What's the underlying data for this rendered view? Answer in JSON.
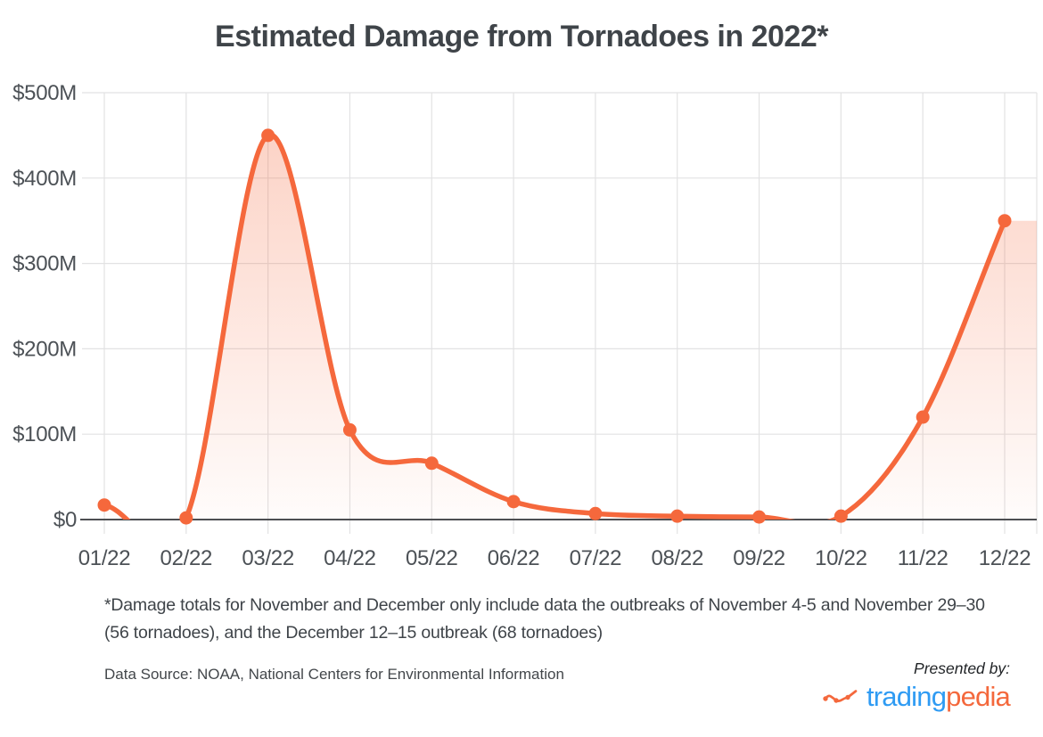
{
  "page": {
    "title": "Estimated Damage from Tornadoes in 2022*",
    "footnote": "*Damage totals for November and December only include data the outbreaks of November 4-5 and November 29–30 (56 tornadoes), and the December 12–15 outbreak (68 tornadoes)",
    "data_source": "Data Source: NOAA, National Centers for Environmental Information",
    "presented_by": "Presented by:",
    "logo": {
      "text_blue": "trading",
      "text_orange": "pedia",
      "blue": "#2F9BF3",
      "orange": "#F4683C"
    }
  },
  "chart_data": {
    "type": "area",
    "title": "Estimated Damage from Tornadoes in 2022*",
    "categories": [
      "01/22",
      "02/22",
      "03/22",
      "04/22",
      "05/22",
      "06/22",
      "07/22",
      "08/22",
      "09/22",
      "10/22",
      "11/22",
      "12/22"
    ],
    "values": [
      17,
      2,
      450,
      105,
      66,
      21,
      7,
      4,
      3,
      4,
      120,
      350
    ],
    "unit": "$M",
    "ylim": [
      0,
      500
    ],
    "y_tick_step": 100,
    "y_tick_labels": [
      "$0",
      "$100M",
      "$200M",
      "$300M",
      "$400M",
      "$500M"
    ],
    "smooth": true,
    "grid": true,
    "legend": "none",
    "line_color": "#F5683C",
    "point_color": "#F5683C",
    "area_top_opacity": 0.32,
    "area_bottom_opacity": 0.02,
    "grid_color": "#E2E2E3",
    "axis_color": "#4D4F52",
    "tick_label_color": "#4C5156"
  }
}
